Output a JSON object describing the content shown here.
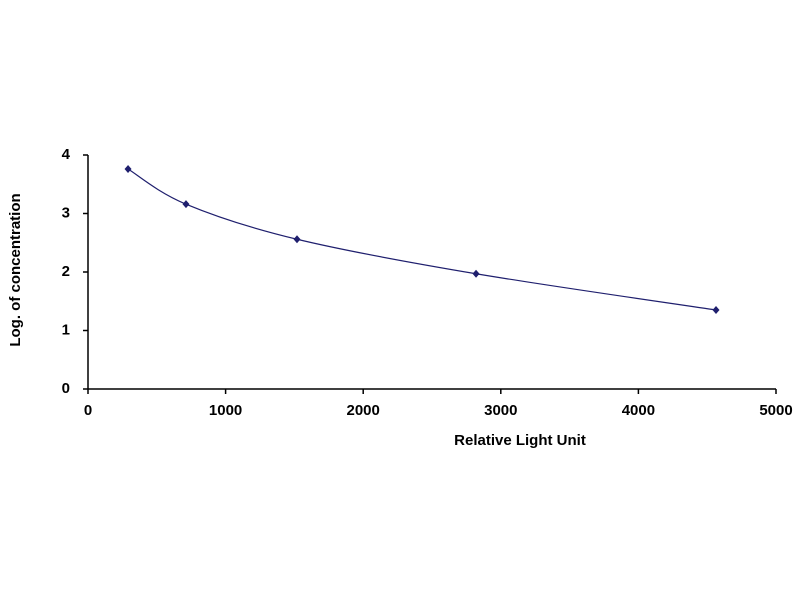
{
  "chart_data": {
    "type": "scatter",
    "x_label": "Relative Light Unit",
    "y_label": "Log. of concentration",
    "series": [
      {
        "color": "#1f1f6e",
        "x": [
          291,
          712,
          1519,
          2820,
          4564
        ],
        "values": [
          3.76,
          3.16,
          2.56,
          1.97,
          1.35
        ]
      }
    ],
    "xlim": [
      0,
      5000
    ],
    "xticks": [
      0,
      1000,
      2000,
      3000,
      4000,
      5000
    ],
    "ylim": [
      0,
      4
    ],
    "yticks": [
      0,
      1,
      2,
      3,
      4
    ],
    "grid": false,
    "smooth": true
  }
}
